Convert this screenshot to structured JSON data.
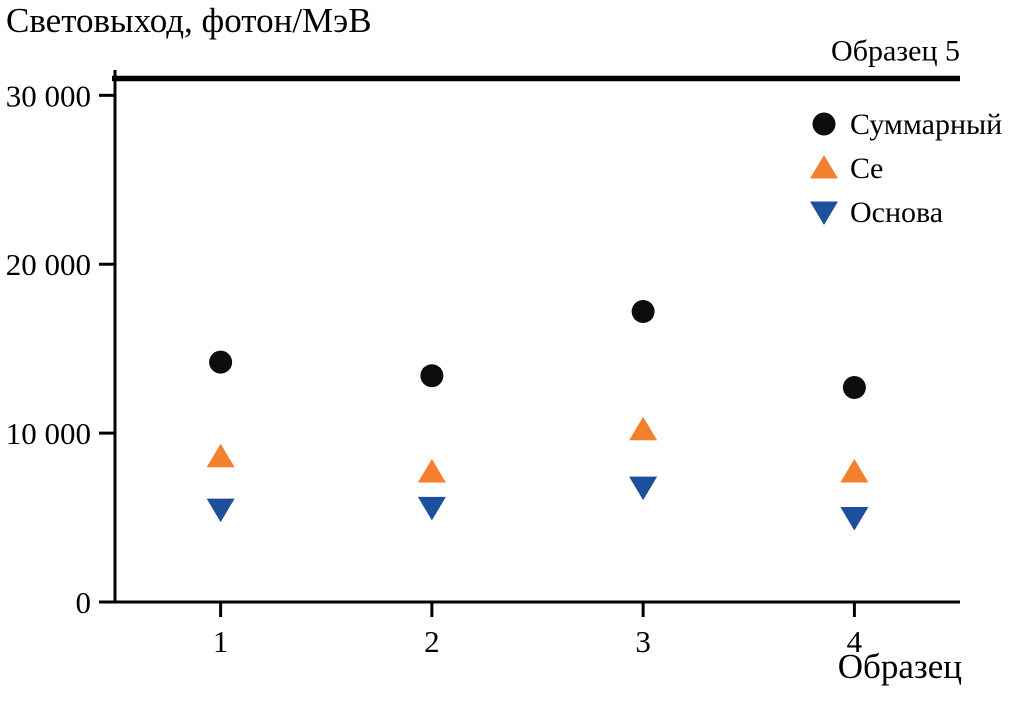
{
  "chart_data": {
    "type": "scatter",
    "title": "Световыход, фотон/МэВ",
    "xlabel": "Образец",
    "x": [
      1,
      2,
      3,
      4
    ],
    "series": [
      {
        "name": "Суммарный",
        "marker": "circle",
        "color": "#0d0d0d",
        "values": [
          14200,
          13400,
          17200,
          12700
        ]
      },
      {
        "name": "Ce",
        "marker": "triangle-up",
        "color": "#f2802e",
        "values": [
          8600,
          7700,
          10200,
          7700
        ]
      },
      {
        "name": "Основа",
        "marker": "triangle-down",
        "color": "#1e4f9c",
        "values": [
          5500,
          5600,
          6800,
          5000
        ]
      }
    ],
    "reference_line": {
      "label": "Образец 5",
      "value": 31000,
      "color": "#000000"
    },
    "xticks": [
      1,
      2,
      3,
      4
    ],
    "xtick_labels": [
      "1",
      "2",
      "3",
      "4"
    ],
    "yticks": [
      0,
      10000,
      20000,
      30000
    ],
    "ytick_labels": [
      "0",
      "10 000",
      "20 000",
      "30 000"
    ],
    "xlim": [
      0.5,
      4.5
    ],
    "ylim": [
      0,
      31500
    ],
    "grid": false,
    "legend_position": "upper right"
  }
}
